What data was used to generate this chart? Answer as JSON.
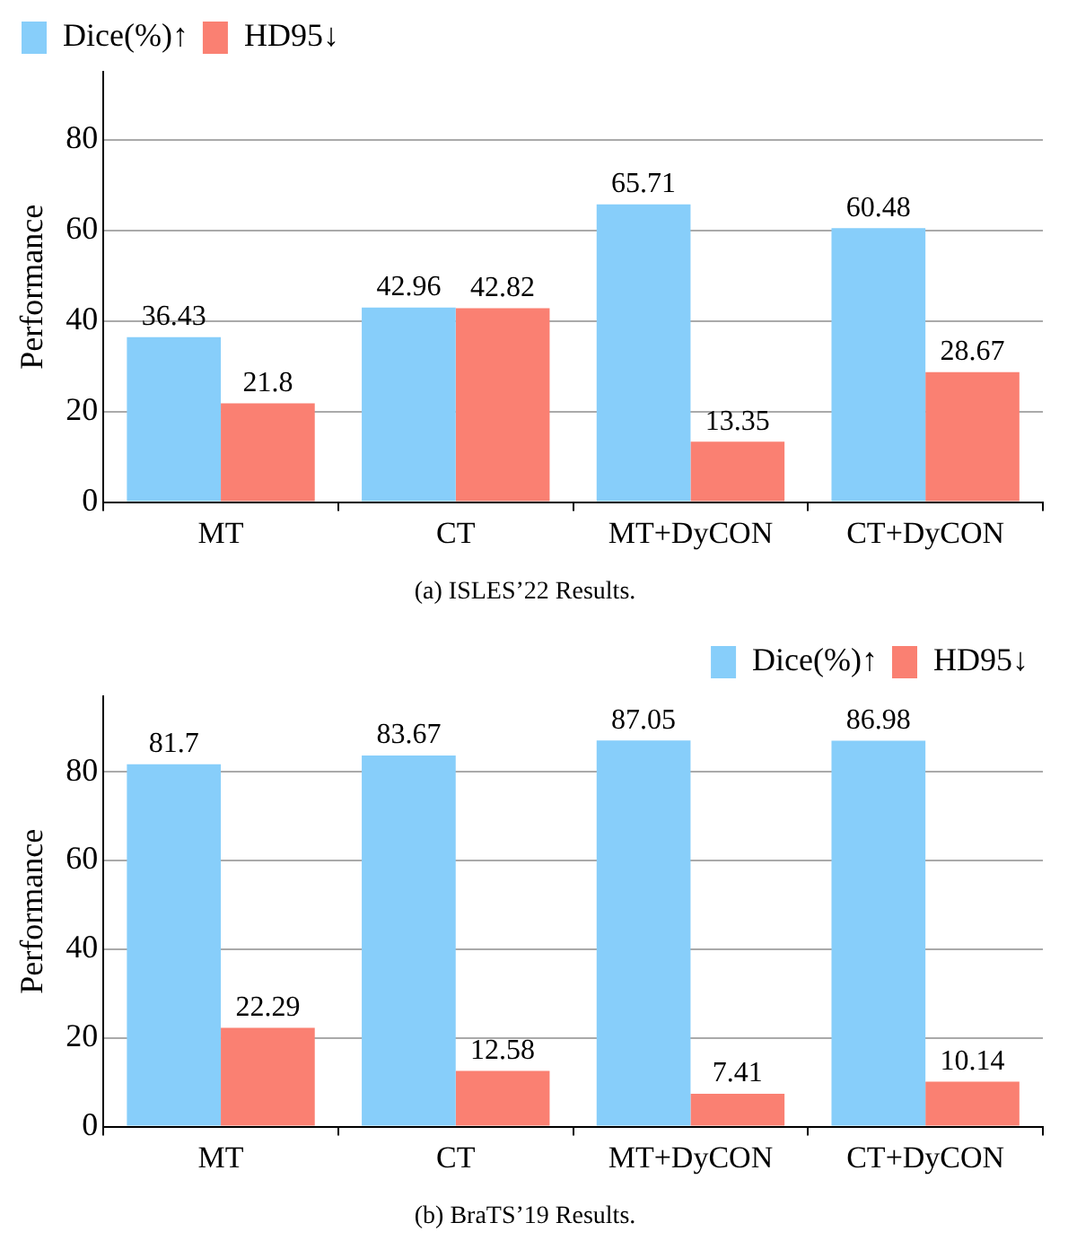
{
  "chart_data": [
    {
      "type": "bar",
      "title": "(a) ISLES’22 Results.",
      "ylabel": "Performance",
      "categories": [
        "MT",
        "CT",
        "MT+DyCON",
        "CT+DyCON"
      ],
      "series": [
        {
          "name": "Dice(%)↑",
          "color": "#87cefa",
          "values": [
            36.43,
            42.96,
            65.71,
            60.48
          ]
        },
        {
          "name": "HD95↓",
          "color": "#fa8072",
          "values": [
            21.8,
            42.82,
            13.35,
            28.67
          ]
        }
      ],
      "ylim": [
        0,
        95
      ],
      "yticks": [
        0,
        20,
        40,
        60,
        80
      ],
      "grid": "y",
      "legend": "top left",
      "data_labels": true
    },
    {
      "type": "bar",
      "title": "(b) BraTS’19 Results.",
      "ylabel": "Performance",
      "categories": [
        "MT",
        "CT",
        "MT+DyCON",
        "CT+DyCON"
      ],
      "series": [
        {
          "name": "Dice(%)↑",
          "color": "#87cefa",
          "values": [
            81.7,
            83.67,
            87.05,
            86.98
          ]
        },
        {
          "name": "HD95↓",
          "color": "#fa8072",
          "values": [
            22.29,
            12.58,
            7.41,
            10.14
          ]
        }
      ],
      "ylim": [
        0,
        97
      ],
      "yticks": [
        0,
        20,
        40,
        60,
        80
      ],
      "grid": "y",
      "legend": "top right",
      "data_labels": true
    }
  ]
}
